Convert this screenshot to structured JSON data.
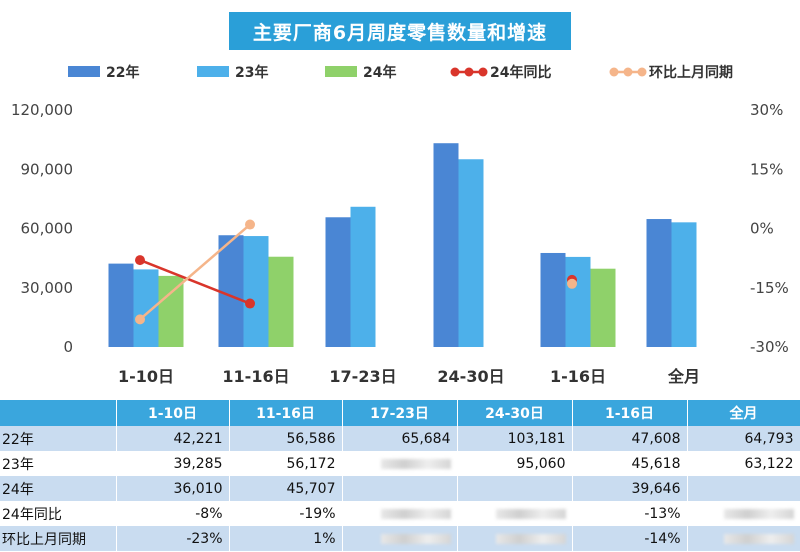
{
  "chart_data": {
    "type": "bar",
    "title": "主要厂商6月周度零售数量和增速",
    "categories": [
      "1-10日",
      "11-16日",
      "17-23日",
      "24-30日",
      "1-16日",
      "全月"
    ],
    "series": [
      {
        "name": "22年",
        "kind": "bar",
        "color": "#4a86d4",
        "values": [
          42221,
          56586,
          65684,
          103181,
          47608,
          64793
        ]
      },
      {
        "name": "23年",
        "kind": "bar",
        "color": "#4db0ea",
        "values": [
          39285,
          56172,
          71000,
          95060,
          45618,
          63122
        ]
      },
      {
        "name": "24年",
        "kind": "bar",
        "color": "#8fd16a",
        "values": [
          36010,
          45707,
          null,
          null,
          39646,
          null
        ]
      },
      {
        "name": "24年同比",
        "kind": "line",
        "axis": "right",
        "color": "#d9352b",
        "values": [
          -0.08,
          -0.19,
          null,
          null,
          -0.13,
          null
        ]
      },
      {
        "name": "环比上月同期",
        "kind": "line",
        "axis": "right",
        "color": "#f5b58a",
        "values": [
          -0.23,
          0.01,
          null,
          null,
          -0.14,
          null
        ]
      }
    ],
    "y_left": {
      "range": [
        0,
        120000
      ],
      "ticks": [
        "0",
        "30,000",
        "60,000",
        "90,000",
        "120,000"
      ]
    },
    "y_right": {
      "range": [
        -0.3,
        0.3
      ],
      "ticks": [
        "-30%",
        "-15%",
        "0%",
        "15%",
        "30%"
      ]
    },
    "legend_position": "top",
    "grid": false
  },
  "table": {
    "header": [
      "",
      "1-10日",
      "11-16日",
      "17-23日",
      "24-30日",
      "1-16日",
      "全月"
    ],
    "rows": [
      {
        "label": "22年",
        "cells": [
          "42,221",
          "56,586",
          "65,684",
          "103,181",
          "47,608",
          "64,793"
        ]
      },
      {
        "label": "23年",
        "cells": [
          "39,285",
          "56,172",
          "",
          "95,060",
          "45,618",
          "63,122"
        ]
      },
      {
        "label": "24年",
        "cells": [
          "36,010",
          "45,707",
          "",
          "",
          "39,646",
          ""
        ]
      },
      {
        "label": "24年同比",
        "cells": [
          "-8%",
          "-19%",
          "",
          "",
          "-13%",
          ""
        ]
      },
      {
        "label": "环比上月同期",
        "cells": [
          "-23%",
          "1%",
          "",
          "",
          "-14%",
          ""
        ]
      }
    ]
  }
}
